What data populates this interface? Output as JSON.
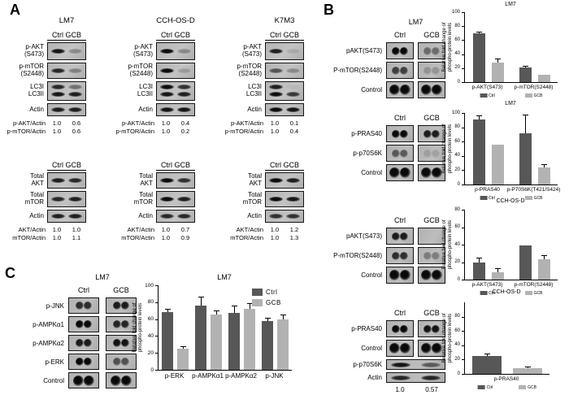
{
  "colors": {
    "ctrl": "#575757",
    "gcb": "#b2b2b2",
    "error": "#000000",
    "band": "#0d0d0d"
  },
  "legend_labels": [
    "Ctrl",
    "GCB"
  ],
  "panel_a": {
    "label": "A",
    "lane_header": [
      "Ctrl",
      "GCB"
    ],
    "cell_lines": [
      {
        "name": "LM7",
        "top_rows": [
          {
            "label": "p-AKT\n(S473)",
            "h": 22,
            "bands": [
              [
                0.95
              ],
              [
                0.3
              ]
            ]
          },
          {
            "label": "p-mTOR\n(S2448)",
            "h": 20,
            "bands": [
              [
                0.85
              ],
              [
                0.35
              ]
            ]
          },
          {
            "label": "LC3I\nLC3II",
            "h": 24,
            "bands": [
              [
                0.85,
                0.95
              ],
              [
                0.45,
                0.9
              ]
            ]
          },
          {
            "label": "Actin",
            "h": 16,
            "bands": [
              [
                0.9
              ],
              [
                0.9
              ]
            ]
          }
        ],
        "top_ratios": [
          {
            "label": "p-AKT/Actin",
            "values": [
              "1.0",
              "0.6"
            ]
          },
          {
            "label": "p-mTOR/Actin",
            "values": [
              "1.0",
              "0.6"
            ]
          }
        ],
        "bottom_rows": [
          {
            "label": "Total\nAKT",
            "h": 20,
            "bands": [
              [
                0.9
              ],
              [
                0.85
              ]
            ]
          },
          {
            "label": "Total\nmTOR",
            "h": 20,
            "bands": [
              [
                0.85
              ],
              [
                0.9
              ]
            ]
          },
          {
            "label": "Actin",
            "h": 16,
            "bands": [
              [
                0.9
              ],
              [
                0.9
              ]
            ]
          }
        ],
        "bottom_ratios": [
          {
            "label": "AKT/Actin",
            "values": [
              "1.0",
              "1.0"
            ]
          },
          {
            "label": "mTOR/Actin",
            "values": [
              "1.0",
              "1.1"
            ]
          }
        ]
      },
      {
        "name": "CCH-OS-D",
        "top_rows": [
          {
            "label": "p-AKT\n(S473)",
            "h": 22,
            "bands": [
              [
                1.0
              ],
              [
                0.3
              ]
            ]
          },
          {
            "label": "p-mTOR\n(S2448)",
            "h": 20,
            "bands": [
              [
                1.0
              ],
              [
                0.2
              ]
            ]
          },
          {
            "label": "LC3I\nLC3II",
            "h": 24,
            "bands": [
              [
                1.0,
                0.95
              ],
              [
                0.8,
                0.9
              ]
            ]
          },
          {
            "label": "Actin",
            "h": 16,
            "bands": [
              [
                0.95
              ],
              [
                0.95
              ]
            ]
          }
        ],
        "top_ratios": [
          {
            "label": "p-AKT/Actin",
            "values": [
              "1.0",
              "0.4"
            ]
          },
          {
            "label": "p-mTOR/Actin",
            "values": [
              "1.0",
              "0.2"
            ]
          }
        ],
        "bottom_rows": [
          {
            "label": "Total\nAKT",
            "h": 20,
            "bands": [
              [
                1.0
              ],
              [
                0.8
              ]
            ]
          },
          {
            "label": "Total\nmTOR",
            "h": 20,
            "bands": [
              [
                1.0
              ],
              [
                0.9
              ]
            ]
          },
          {
            "label": "Actin",
            "h": 16,
            "bands": [
              [
                0.85
              ],
              [
                0.85
              ]
            ]
          }
        ],
        "bottom_ratios": [
          {
            "label": "AKT/Actin",
            "values": [
              "1.0",
              "0.7"
            ]
          },
          {
            "label": "mTOR/Actin",
            "values": [
              "1.0",
              "0.9"
            ]
          }
        ]
      },
      {
        "name": "K7M3",
        "top_rows": [
          {
            "label": "p-AKT\n(S473)",
            "h": 22,
            "bands": [
              [
                0.9
              ],
              [
                0.12
              ]
            ]
          },
          {
            "label": "p-mTOR\n(S2448)",
            "h": 20,
            "bands": [
              [
                0.6
              ],
              [
                0.3
              ]
            ]
          },
          {
            "label": "LC3I\nLC3II",
            "h": 24,
            "bands": [
              [
                0.9,
                1.0
              ],
              [
                0.05,
                0.75
              ]
            ]
          },
          {
            "label": "Actin",
            "h": 16,
            "bands": [
              [
                1.0
              ],
              [
                0.95
              ]
            ]
          }
        ],
        "top_ratios": [
          {
            "label": "p-AKT/Actin",
            "values": [
              "1.0",
              "0.1"
            ]
          },
          {
            "label": "p-mTOR/Actin",
            "values": [
              "1.0",
              "0.4"
            ]
          }
        ],
        "bottom_rows": [
          {
            "label": "Total\nAKT",
            "h": 20,
            "bands": [
              [
                1.0
              ],
              [
                0.9
              ]
            ]
          },
          {
            "label": "Total\nmTOR",
            "h": 20,
            "bands": [
              [
                1.0
              ],
              [
                0.95
              ]
            ]
          },
          {
            "label": "Actin",
            "h": 16,
            "bands": [
              [
                0.8
              ],
              [
                0.8
              ]
            ]
          }
        ],
        "bottom_ratios": [
          {
            "label": "AKT/Actin",
            "values": [
              "1.0",
              "1.2"
            ]
          },
          {
            "label": "mTOR/Actin",
            "values": [
              "1.0",
              "1.3"
            ]
          }
        ]
      }
    ]
  },
  "panel_b": {
    "label": "B",
    "groups": [
      {
        "title": "LM7",
        "cols": [
          "Ctrl",
          "GCB"
        ],
        "rows": [
          {
            "label": "pAKT(S473)",
            "type": "dots",
            "intensity": [
              1.0,
              0.45
            ]
          },
          {
            "label": "P-mTOR(S2448)",
            "type": "dots",
            "intensity": [
              0.7,
              0.22
            ]
          },
          {
            "label": "Control",
            "type": "dots-large",
            "intensity": [
              1.0,
              1.0
            ]
          }
        ]
      },
      {
        "title": null,
        "cols": [
          "Ctrl",
          "GCB"
        ],
        "rows": [
          {
            "label": "p-PRAS40",
            "type": "dots",
            "intensity": [
              1.0,
              0.9
            ]
          },
          {
            "label": "p-p70S6K",
            "type": "dots",
            "intensity": [
              0.55,
              0.15
            ]
          },
          {
            "label": "Control",
            "type": "dots-large",
            "intensity": [
              1.0,
              1.0
            ]
          }
        ]
      },
      {
        "title": null,
        "cols": [
          "Ctrl",
          "GCB"
        ],
        "rows": [
          {
            "label": "pAKT(S473)",
            "type": "dots",
            "intensity": [
              0.9,
              0.0
            ]
          },
          {
            "label": "P-mTOR(S2448)",
            "type": "dots",
            "intensity": [
              0.8,
              0.35
            ]
          },
          {
            "label": "Control",
            "type": "dots-large",
            "intensity": [
              1.0,
              1.0
            ]
          }
        ]
      },
      {
        "title": null,
        "cols": [
          "Ctrl",
          "GCB"
        ],
        "rows": [
          {
            "label": "p-PRAS40",
            "type": "dots",
            "intensity": [
              1.0,
              0.95
            ]
          },
          {
            "label": "Control",
            "type": "dots-large",
            "intensity": [
              1.0,
              1.0
            ]
          },
          {
            "label": "p-p70S6K",
            "type": "band",
            "intensity": [
              0.95,
              0.55
            ]
          },
          {
            "label": "Actin",
            "type": "band",
            "intensity": [
              0.85,
              0.85
            ]
          }
        ],
        "values": [
          "1.0",
          "0.57"
        ]
      }
    ]
  },
  "panel_c": {
    "label": "C",
    "title": "LM7",
    "cols": [
      "Ctrl",
      "GCB"
    ],
    "rows": [
      {
        "label": "p-JNK",
        "type": "dots",
        "intensity": [
          0.8,
          0.9
        ]
      },
      {
        "label": "p-AMPKα1",
        "type": "dots",
        "intensity": [
          1.0,
          0.85
        ]
      },
      {
        "label": "p-AMPKα2",
        "type": "dots",
        "intensity": [
          0.9,
          0.95
        ]
      },
      {
        "label": "p-ERK",
        "type": "dots",
        "intensity": [
          1.0,
          0.6
        ]
      },
      {
        "label": "Control",
        "type": "dots-large",
        "intensity": [
          1.0,
          1.0
        ]
      }
    ]
  },
  "chart_data": [
    {
      "type": "bar",
      "title": "LM7",
      "ylabel": "Relative fold change of\nphospho-protein levels",
      "xlabel": "",
      "ylim": [
        0,
        100
      ],
      "yticks": [
        0,
        20,
        40,
        60,
        80,
        100
      ],
      "grid": false,
      "legend_position": "bottom",
      "categories": [
        "p-AKT(S473)",
        "p-mTOR(S2448)"
      ],
      "series": [
        {
          "name": "Ctrl",
          "values": [
            70,
            21
          ],
          "errors": [
            1,
            1.5
          ]
        },
        {
          "name": "GCB",
          "values": [
            28,
            10
          ],
          "errors": [
            4,
            0
          ]
        }
      ]
    },
    {
      "type": "bar",
      "title": "LM7",
      "ylabel": "Relative fold change of\nphospho-protein levels",
      "xlabel": "",
      "ylim": [
        0,
        100
      ],
      "yticks": [
        0,
        20,
        40,
        60,
        80,
        100
      ],
      "grid": false,
      "legend_position": "bottom",
      "categories": [
        "p-PRAS40",
        "p-P70S6K(T421/S424)"
      ],
      "series": [
        {
          "name": "Ctrl",
          "values": [
            91,
            72
          ],
          "errors": [
            5,
            25
          ]
        },
        {
          "name": "GCB",
          "values": [
            56,
            24
          ],
          "errors": [
            0,
            3
          ]
        }
      ]
    },
    {
      "type": "bar",
      "title": "CCH-OS-D",
      "ylabel": "Relative fold change of\nphospho-protein levels",
      "xlabel": "",
      "ylim": [
        0,
        80
      ],
      "yticks": [
        0,
        20,
        40,
        60,
        80
      ],
      "grid": false,
      "legend_position": "bottom",
      "categories": [
        "p-AKT(S473)",
        "p-mTOR(S2448)"
      ],
      "series": [
        {
          "name": "Ctrl",
          "values": [
            20,
            39
          ],
          "errors": [
            4,
            0
          ]
        },
        {
          "name": "GCB",
          "values": [
            8,
            23
          ],
          "errors": [
            4,
            4
          ]
        }
      ]
    },
    {
      "type": "bar",
      "title": "CCH-OS-D",
      "ylabel": "Relative fold change of\nphospho-protein levels",
      "xlabel": "",
      "ylim": [
        0,
        100
      ],
      "yticks": [
        0,
        20,
        40,
        60,
        80
      ],
      "grid": false,
      "legend_position": "bottom",
      "categories": [
        "p-PRAS40"
      ],
      "series": [
        {
          "name": "Ctrl",
          "values": [
            25
          ],
          "errors": [
            2
          ]
        },
        {
          "name": "GCB",
          "values": [
            8
          ],
          "errors": [
            1
          ]
        }
      ]
    },
    {
      "type": "bar",
      "title": "LM7",
      "ylabel": "Relative fold change of\nphospho-protein levels",
      "xlabel": "",
      "ylim": [
        0,
        100
      ],
      "yticks": [
        0,
        20,
        40,
        60,
        80,
        100
      ],
      "grid": false,
      "legend_position": "top-right",
      "categories": [
        "p-ERK",
        "p-AMPKα1",
        "p-AMPKα2",
        "p-JNK"
      ],
      "series": [
        {
          "name": "Ctrl",
          "values": [
            68,
            76,
            67,
            58
          ],
          "errors": [
            3,
            10,
            8,
            3
          ]
        },
        {
          "name": "GCB",
          "values": [
            25,
            65,
            72,
            60
          ],
          "errors": [
            2,
            4,
            6,
            4
          ]
        }
      ]
    }
  ]
}
